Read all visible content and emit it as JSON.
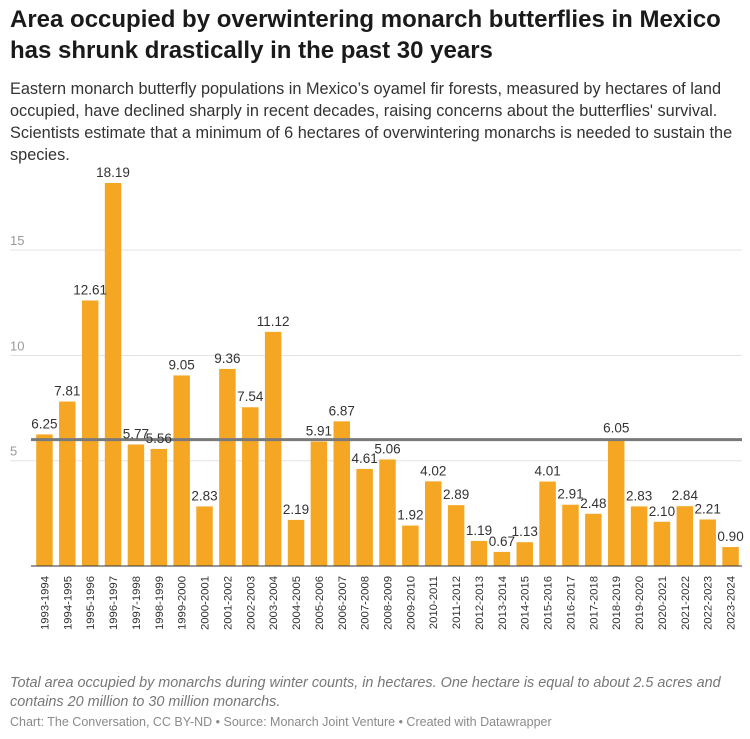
{
  "header": {
    "title": "Area occupied by overwintering monarch butterflies in Mexico has shrunk drastically in the past 30 years",
    "subtitle": "Eastern monarch butterfly populations in Mexico’s oyamel fir forests, measured by hectares of land occupied, have declined sharply in recent decades, raising concerns about the butterflies' survival. Scientists estimate that a minimum of 6 hectares of overwintering monarchs is needed to sustain the species."
  },
  "footer": {
    "notes": "Total area occupied by monarchs during winter counts, in hectares. One hectare is equal to about 2.5 acres and contains 20 million to 30 million monarchs.",
    "credit": "Chart: The Conversation, CC BY-ND • Source: Monarch Joint Venture • Created with Datawrapper"
  },
  "chart_data": {
    "type": "bar",
    "title": "",
    "xlabel": "",
    "ylabel": "",
    "categories": [
      "1993-1994",
      "1994-1995",
      "1995-1996",
      "1996-1997",
      "1997-1998",
      "1998-1999",
      "1999-2000",
      "2000-2001",
      "2001-2002",
      "2002-2003",
      "2003-2004",
      "2004-2005",
      "2005-2006",
      "2006-2007",
      "2007-2008",
      "2008-2009",
      "2009-2010",
      "2010-2011",
      "2011-2012",
      "2012-2013",
      "2013-2014",
      "2014-2015",
      "2015-2016",
      "2016-2017",
      "2017-2018",
      "2018-2019",
      "2019-2020",
      "2020-2021",
      "2021-2022",
      "2022-2023",
      "2023-2024"
    ],
    "values": [
      6.25,
      7.81,
      12.61,
      18.19,
      5.77,
      5.56,
      9.05,
      2.83,
      9.36,
      7.54,
      11.12,
      2.19,
      5.91,
      6.87,
      4.61,
      5.06,
      1.92,
      4.02,
      2.89,
      1.19,
      0.67,
      1.13,
      4.01,
      2.91,
      2.48,
      6.05,
      2.83,
      2.1,
      2.84,
      2.21,
      0.9
    ],
    "value_labels": [
      "6.25",
      "7.81",
      "12.61",
      "18.19",
      "5.77",
      "5.56",
      "9.05",
      "2.83",
      "9.36",
      "7.54",
      "11.12",
      "2.19",
      "5.91",
      "6.87",
      "4.61",
      "5.06",
      "1.92",
      "4.02",
      "2.89",
      "1.19",
      "0.67",
      "1.13",
      "4.01",
      "2.91",
      "2.48",
      "6.05",
      "2.83",
      "2.10",
      "2.84",
      "2.21",
      "0.90"
    ],
    "yticks": [
      5,
      10,
      15
    ],
    "ytick_labels": [
      "5",
      "10",
      "15"
    ],
    "ylim": [
      0,
      18.19
    ],
    "grid": true,
    "reference_line": 6,
    "bar_color": "#f5a623",
    "reference_line_color": "#7a7a7a",
    "grid_color": "#e3e3e3"
  }
}
